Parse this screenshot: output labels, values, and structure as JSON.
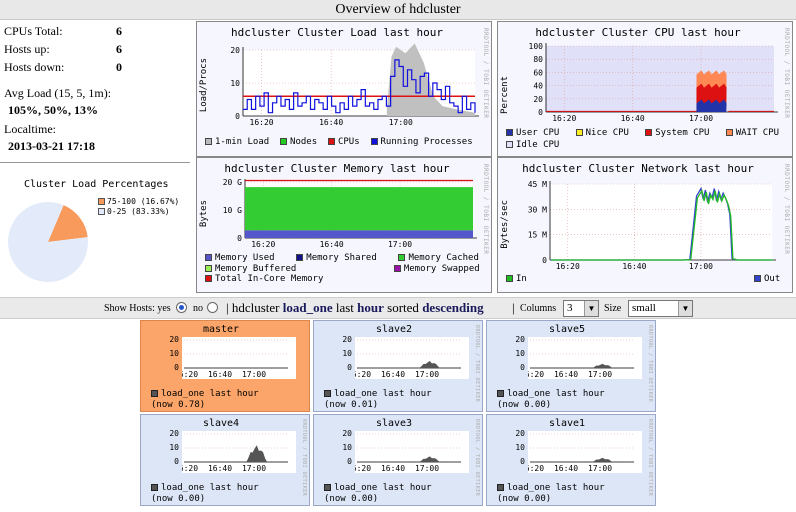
{
  "page_title": "Overview of hdcluster",
  "summary": {
    "cpus_total_label": "CPUs Total:",
    "cpus_total": "6",
    "hosts_up_label": "Hosts up:",
    "hosts_up": "6",
    "hosts_down_label": "Hosts down:",
    "hosts_down": "0",
    "avg_load_label": "Avg Load (15, 5, 1m):",
    "avg_load": "105%, 50%, 13%",
    "localtime_label": "Localtime:",
    "localtime": "2013-03-21 17:18"
  },
  "pie": {
    "title": "Cluster Load Percentages",
    "slices": [
      {
        "label": "75-100 (16.67%)",
        "value": 16.67,
        "color": "#f79a5c"
      },
      {
        "label": "0-25 (83.33%)",
        "value": 83.33,
        "color": "#e3ebfa"
      }
    ]
  },
  "rrd_watermark": "RRDTOOL / TOBI OETIKER",
  "graphs": {
    "load": {
      "title": "hdcluster Cluster Load last hour",
      "ylabel": "Load/Procs",
      "legend": [
        {
          "label": "1-min Load",
          "color": "#bbbbbb"
        },
        {
          "label": "Nodes",
          "color": "#22cc22"
        },
        {
          "label": "CPUs",
          "color": "#dd1111"
        },
        {
          "label": "Running Processes",
          "color": "#1111dd"
        }
      ]
    },
    "cpu": {
      "title": "hdcluster Cluster CPU last hour",
      "ylabel": "Percent",
      "legend": [
        {
          "label": "User CPU",
          "color": "#2233aa"
        },
        {
          "label": "Nice CPU",
          "color": "#ffee22"
        },
        {
          "label": "System CPU",
          "color": "#dd1111"
        },
        {
          "label": "WAIT CPU",
          "color": "#ff8855"
        },
        {
          "label": "Idle CPU",
          "color": "#e0e0f8"
        }
      ]
    },
    "memory": {
      "title": "hdcluster Cluster Memory last hour",
      "ylabel": "Bytes",
      "legend": [
        {
          "label": "Memory Used",
          "color": "#5555cc"
        },
        {
          "label": "Memory Shared",
          "color": "#111188"
        },
        {
          "label": "Memory Cached",
          "color": "#33cc33"
        },
        {
          "label": "Memory Buffered",
          "color": "#99ee55"
        },
        {
          "label": "Memory Swapped",
          "color": "#9911aa"
        },
        {
          "label": "Total In-Core Memory",
          "color": "#dd1111"
        }
      ]
    },
    "network": {
      "title": "hdcluster Cluster Network last hour",
      "ylabel": "Bytes/sec",
      "legend": [
        {
          "label": "In",
          "color": "#22bb22"
        },
        {
          "label": "Out",
          "color": "#3344cc"
        }
      ]
    }
  },
  "controls": {
    "show_hosts_label": "Show Hosts: yes",
    "no_label": "no",
    "sep": "|",
    "cluster": "hdcluster",
    "metric": "load_one",
    "mid": "last",
    "range": "hour",
    "sorted": "sorted",
    "order": "descending",
    "columns_label": "Columns",
    "columns_value": "3",
    "size_label": "Size",
    "size_value": "small"
  },
  "hosts": [
    {
      "name": "master",
      "legend": "load_one last hour",
      "now": "(now 0.78)",
      "hot": true
    },
    {
      "name": "slave2",
      "legend": "load_one last hour",
      "now": "(now 0.01)",
      "hot": false
    },
    {
      "name": "slave5",
      "legend": "load_one last hour",
      "now": "(now 0.00)",
      "hot": false
    },
    {
      "name": "slave4",
      "legend": "load_one last hour",
      "now": "(now 0.00)",
      "hot": false
    },
    {
      "name": "slave3",
      "legend": "load_one last hour",
      "now": "(now 0.00)",
      "hot": false
    },
    {
      "name": "slave1",
      "legend": "load_one last hour",
      "now": "(now 0.00)",
      "hot": false
    }
  ],
  "ticks": {
    "time": [
      "16:20",
      "16:40",
      "17:00"
    ],
    "load_y": [
      "0",
      "10",
      "20"
    ],
    "cpu_y": [
      "0",
      "20",
      "40",
      "60",
      "80",
      "100"
    ],
    "mem_y": [
      "0",
      "10 G",
      "20 G"
    ],
    "net_y": [
      "0",
      "15 M",
      "30 M",
      "45 M"
    ],
    "host_y": [
      "0",
      "10",
      "20"
    ]
  }
}
